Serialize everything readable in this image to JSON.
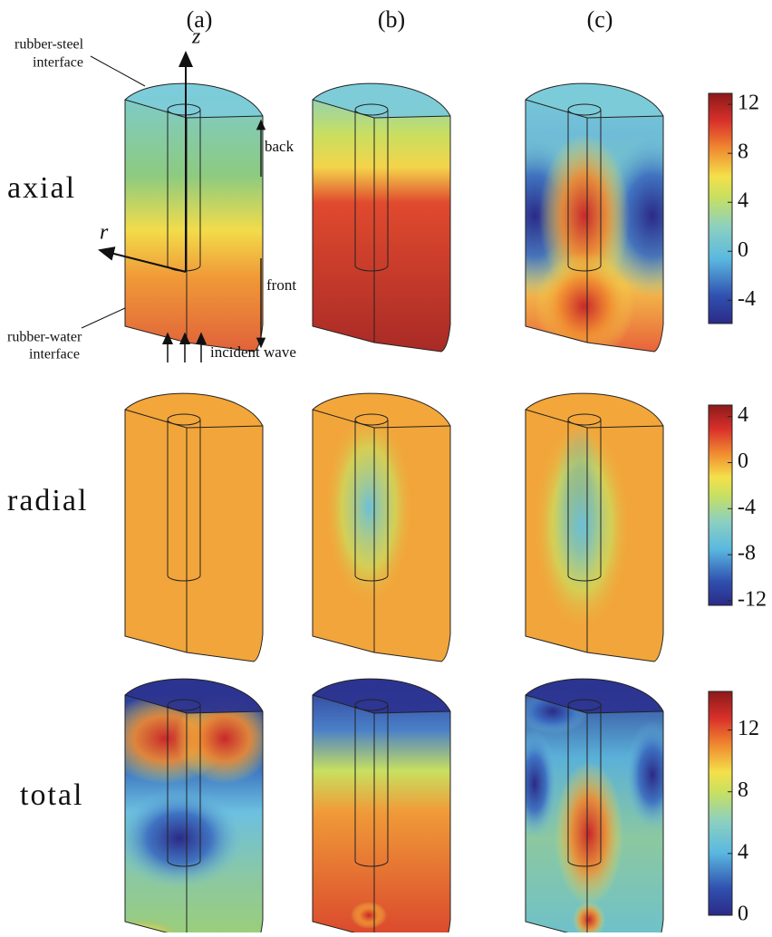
{
  "columns": [
    "(a)",
    "(b)",
    "(c)"
  ],
  "rows": [
    "axial",
    "radial",
    "total"
  ],
  "annotations": {
    "z_axis": "z",
    "r_axis": "r",
    "rubber_steel_interface": [
      "rubber-steel",
      "interface"
    ],
    "rubber_water_interface": [
      "rubber-water",
      "interface"
    ],
    "back": "back",
    "front": "front",
    "incident_wave": "incident wave"
  },
  "colorbars": [
    {
      "lim": [
        -5.9,
        12.9
      ],
      "ticks": [
        12,
        8,
        4,
        0,
        -4
      ]
    },
    {
      "lim": [
        -12.4,
        5.0
      ],
      "ticks": [
        4,
        0,
        -4,
        -8,
        -12
      ]
    },
    {
      "lim": [
        0,
        14.5
      ],
      "ticks": [
        12,
        8,
        4,
        0
      ]
    }
  ]
}
